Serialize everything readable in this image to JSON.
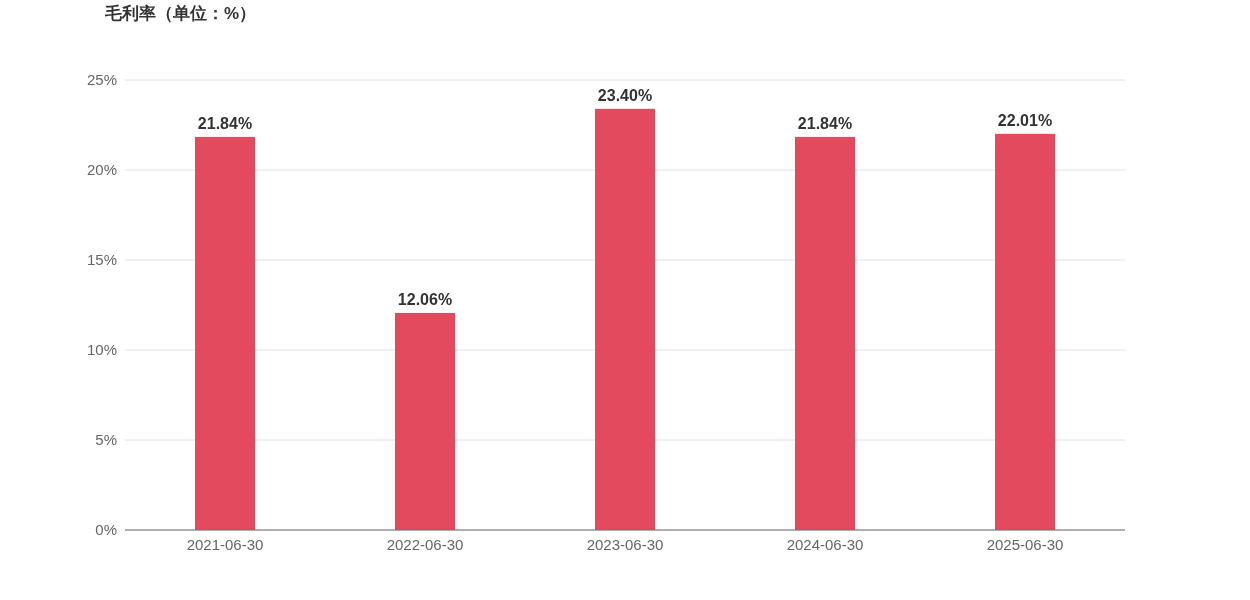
{
  "chart_data": {
    "type": "bar",
    "title": "毛利率（单位：%）",
    "categories": [
      "2021-06-30",
      "2022-06-30",
      "2023-06-30",
      "2024-06-30",
      "2025-06-30"
    ],
    "values": [
      21.84,
      12.06,
      23.4,
      21.84,
      22.01
    ],
    "value_labels": [
      "21.84%",
      "12.06%",
      "23.40%",
      "21.84%",
      "22.01%"
    ],
    "color": "#e34a5e",
    "ylim": [
      0,
      25
    ],
    "yticks": [
      {
        "value": 0,
        "label": "0%"
      },
      {
        "value": 5,
        "label": "5%"
      },
      {
        "value": 10,
        "label": "10%"
      },
      {
        "value": 15,
        "label": "15%"
      },
      {
        "value": 20,
        "label": "20%"
      },
      {
        "value": 25,
        "label": "25%"
      }
    ],
    "grid": "y"
  }
}
